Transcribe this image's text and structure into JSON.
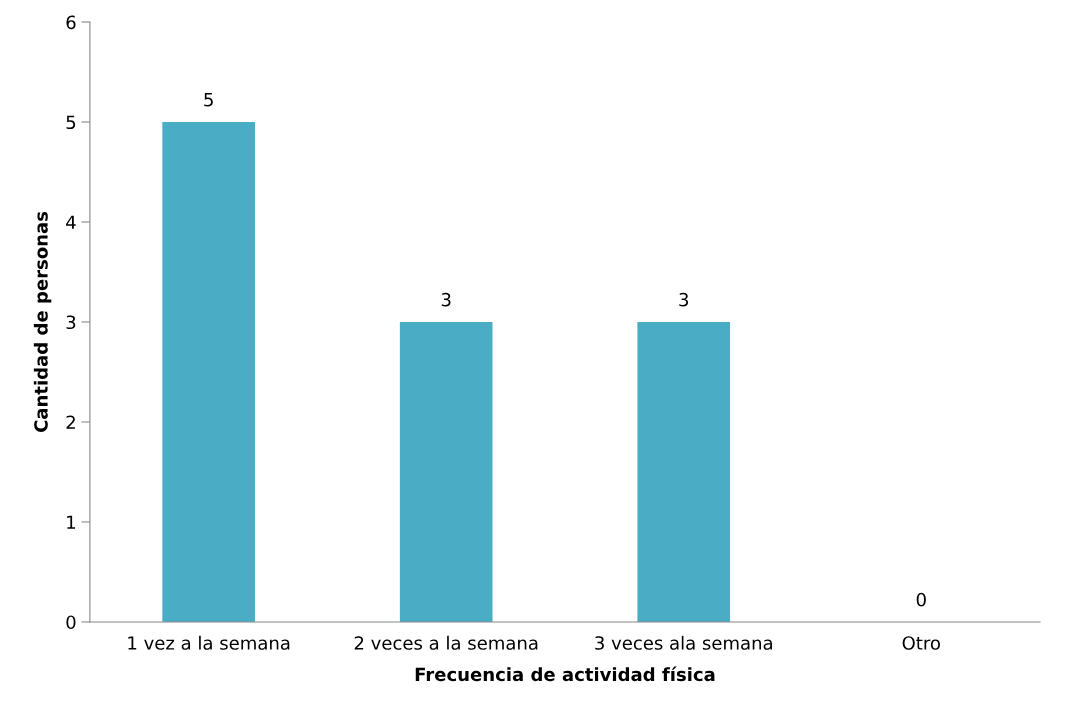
{
  "chart_data": {
    "type": "bar",
    "xlabel": "Frecuencia de actividad física",
    "ylabel": "Cantidad de personas",
    "categories": [
      "1 vez a la semana",
      "2 veces a la semana",
      "3 veces ala semana",
      "Otro"
    ],
    "values": [
      5,
      3,
      3,
      0
    ],
    "color": "#4bacc6",
    "ylim": [
      0,
      6
    ],
    "yticks": [
      0,
      1,
      2,
      3,
      4,
      5,
      6
    ],
    "grid": false,
    "data_labels": true
  }
}
